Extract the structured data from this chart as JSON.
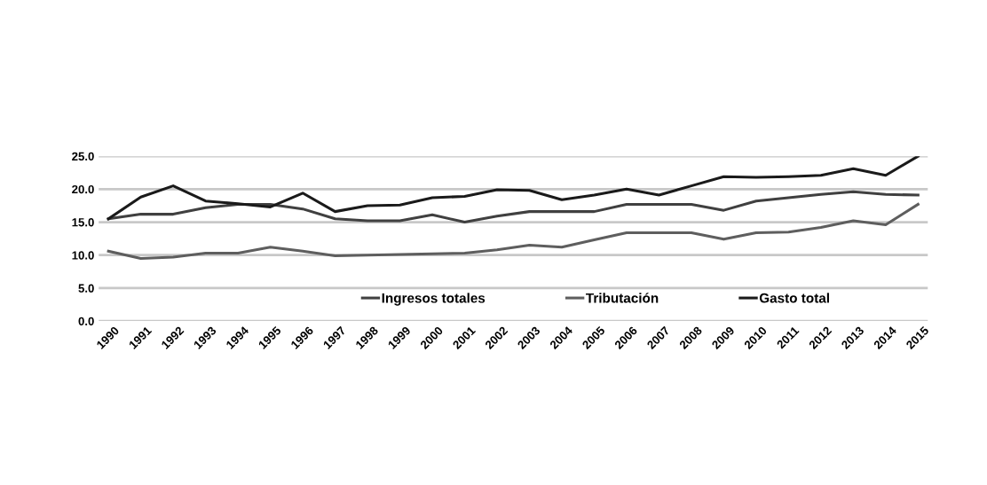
{
  "chart_data": {
    "type": "line",
    "categories": [
      "1990",
      "1991",
      "1992",
      "1993",
      "1994",
      "1995",
      "1996",
      "1997",
      "1998",
      "1999",
      "2000",
      "2001",
      "2002",
      "2003",
      "2004",
      "2005",
      "2006",
      "2007",
      "2008",
      "2009",
      "2010",
      "2011",
      "2012",
      "2013",
      "2014",
      "2015"
    ],
    "series": [
      {
        "name": "Ingresos totales",
        "color": "#404040",
        "values": [
          15.5,
          16.2,
          16.2,
          17.2,
          17.7,
          17.7,
          17.0,
          15.5,
          15.2,
          15.2,
          16.1,
          15.0,
          15.9,
          16.6,
          16.6,
          16.6,
          17.7,
          17.7,
          17.7,
          16.8,
          18.2,
          18.7,
          19.2,
          19.6,
          19.2,
          19.1
        ]
      },
      {
        "name": "Tributación",
        "color": "#5e5e5e",
        "values": [
          10.6,
          9.5,
          9.7,
          10.3,
          10.3,
          11.2,
          10.6,
          9.9,
          10.0,
          10.1,
          10.2,
          10.3,
          10.8,
          11.5,
          11.2,
          12.3,
          13.4,
          13.4,
          13.4,
          12.4,
          13.4,
          13.5,
          14.2,
          15.2,
          14.6,
          17.7
        ]
      },
      {
        "name": "Gasto total",
        "color": "#1a1a1a",
        "values": [
          15.5,
          18.8,
          20.5,
          18.2,
          17.8,
          17.3,
          19.4,
          16.6,
          17.5,
          17.6,
          18.7,
          18.9,
          19.9,
          19.8,
          18.4,
          19.1,
          20.0,
          19.1,
          20.5,
          21.9,
          21.8,
          21.9,
          22.1,
          23.1,
          22.1,
          25.0
        ]
      }
    ],
    "ylim": [
      0,
      25
    ],
    "yticks": [
      {
        "value": 0,
        "label": "0.0"
      },
      {
        "value": 5,
        "label": "5.0"
      },
      {
        "value": 10,
        "label": "10.0"
      },
      {
        "value": 15,
        "label": "15.0"
      },
      {
        "value": 20,
        "label": "20.0"
      },
      {
        "value": 25,
        "label": "25.0"
      }
    ],
    "grid": "y",
    "legend": "bottom",
    "line_style": "solid",
    "marker": "none"
  }
}
